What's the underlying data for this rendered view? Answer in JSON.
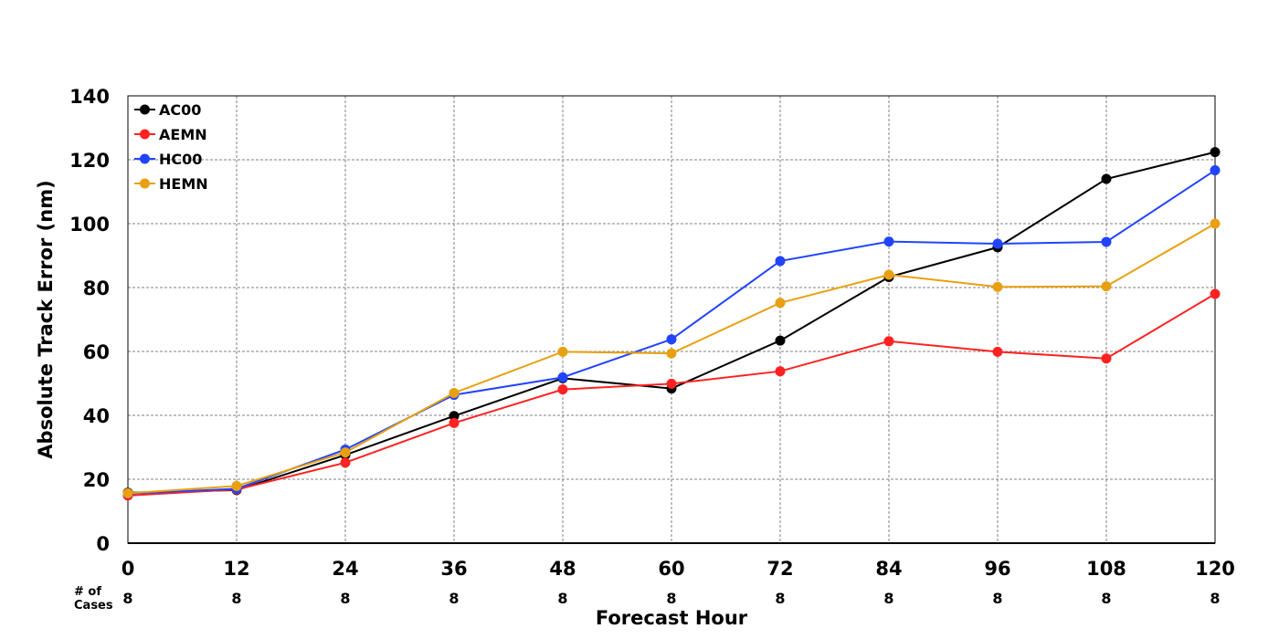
{
  "chart_data": {
    "type": "line",
    "title": "",
    "xlabel": "Forecast Hour",
    "ylabel": "Absolute Track Error (nm)",
    "x": [
      0,
      12,
      24,
      36,
      48,
      60,
      72,
      84,
      96,
      108,
      120
    ],
    "xlim": [
      0,
      120
    ],
    "ylim": [
      0,
      140
    ],
    "yticks": [
      0,
      20,
      40,
      60,
      80,
      100,
      120,
      140
    ],
    "grid": true,
    "legend_position": "top-left",
    "cases_label": "# of\nCases",
    "cases": [
      8,
      8,
      8,
      8,
      8,
      8,
      8,
      8,
      8,
      8,
      8
    ],
    "series": [
      {
        "name": "AC00",
        "color": "#000000",
        "values": [
          15.8,
          16.6,
          27.6,
          39.8,
          51.6,
          48.4,
          63.4,
          83.3,
          92.6,
          114.0,
          122.4
        ]
      },
      {
        "name": "AEMN",
        "color": "#ff2222",
        "values": [
          14.9,
          16.8,
          25.2,
          37.6,
          48.1,
          49.9,
          53.8,
          63.2,
          59.9,
          57.8,
          78.0
        ]
      },
      {
        "name": "HC00",
        "color": "#2244ff",
        "values": [
          15.5,
          17.0,
          29.3,
          46.4,
          51.9,
          63.8,
          88.3,
          94.4,
          93.7,
          94.3,
          116.7
        ]
      },
      {
        "name": "HEMN",
        "color": "#e8a010",
        "values": [
          15.6,
          17.9,
          28.4,
          47.0,
          59.9,
          59.4,
          75.2,
          84.0,
          80.2,
          80.4,
          100.0
        ]
      }
    ]
  }
}
